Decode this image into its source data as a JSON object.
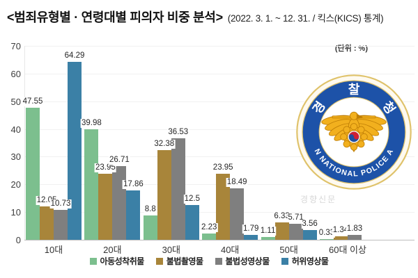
{
  "title": {
    "main": "<범죄유형별 · 연령대별 피의자 비중 분석>",
    "sub": "(2022. 3. 1. ~ 12. 31. / 킥스(KICS) 통계)"
  },
  "unit_label": "(단위 : %)",
  "watermark": "경향신문",
  "logo": {
    "top_text": "경찰청",
    "ring_text": "KOREAN NATIONAL POLICE AGENCY"
  },
  "colors": {
    "grid": "#f1f1f1",
    "baseline": "#bdbdbd",
    "axis_text": "#3c3c3c",
    "watermark": "#d7d7d7",
    "logo_blue": "#1d52a8",
    "logo_gold": "#f2b01e",
    "logo_gold_dark": "#c07f06",
    "logo_rim": "#dfc26a",
    "taegeuk_red": "#cf2033",
    "taegeuk_blue": "#1f4e9e"
  },
  "chart_data": {
    "type": "bar",
    "categories": [
      "10대",
      "20대",
      "30대",
      "40대",
      "50대",
      "60대 이상"
    ],
    "series": [
      {
        "name": "아동성착취물",
        "color": "#7cbf8e",
        "values": [
          47.55,
          39.98,
          8.8,
          2.23,
          1.11,
          0.33
        ]
      },
      {
        "name": "불법촬영물",
        "color": "#a8853a",
        "values": [
          12.05,
          23.95,
          32.38,
          23.95,
          6.33,
          1.34
        ]
      },
      {
        "name": "불법성영상물",
        "color": "#7f7f7f",
        "values": [
          10.73,
          26.71,
          36.53,
          18.49,
          5.71,
          1.83
        ]
      },
      {
        "name": "허위영상물",
        "color": "#3b80a6",
        "values": [
          64.29,
          17.86,
          12.5,
          1.79,
          3.56,
          null
        ]
      }
    ],
    "ylim": [
      0,
      70
    ],
    "ytick_step": 10,
    "grid": true,
    "legend_position": "bottom",
    "value_labels": true
  }
}
